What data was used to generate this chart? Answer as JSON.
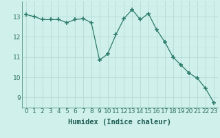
{
  "x": [
    0,
    1,
    2,
    3,
    4,
    5,
    6,
    7,
    8,
    9,
    10,
    11,
    12,
    13,
    14,
    15,
    16,
    17,
    18,
    19,
    20,
    21,
    22,
    23
  ],
  "y": [
    13.1,
    13.0,
    12.85,
    12.85,
    12.85,
    12.7,
    12.85,
    12.9,
    12.7,
    10.85,
    11.15,
    12.1,
    12.9,
    13.35,
    12.85,
    13.15,
    12.35,
    11.75,
    11.0,
    10.6,
    10.2,
    9.95,
    9.45,
    8.75
  ],
  "line_color": "#2d7b6b",
  "marker": "+",
  "marker_size": 4,
  "marker_lw": 1.2,
  "bg_color": "#cff0eb",
  "grid_color": "#b8ddd8",
  "grid_minor_color": "#d0eae6",
  "xlabel": "Humidex (Indice chaleur)",
  "ylim": [
    8.5,
    13.75
  ],
  "xlim": [
    -0.5,
    23.5
  ],
  "yticks": [
    9,
    10,
    11,
    12,
    13
  ],
  "xticks": [
    0,
    1,
    2,
    3,
    4,
    5,
    6,
    7,
    8,
    9,
    10,
    11,
    12,
    13,
    14,
    15,
    16,
    17,
    18,
    19,
    20,
    21,
    22,
    23
  ],
  "font_size": 6.5,
  "xlabel_fontsize": 7.5,
  "line_width": 0.9
}
